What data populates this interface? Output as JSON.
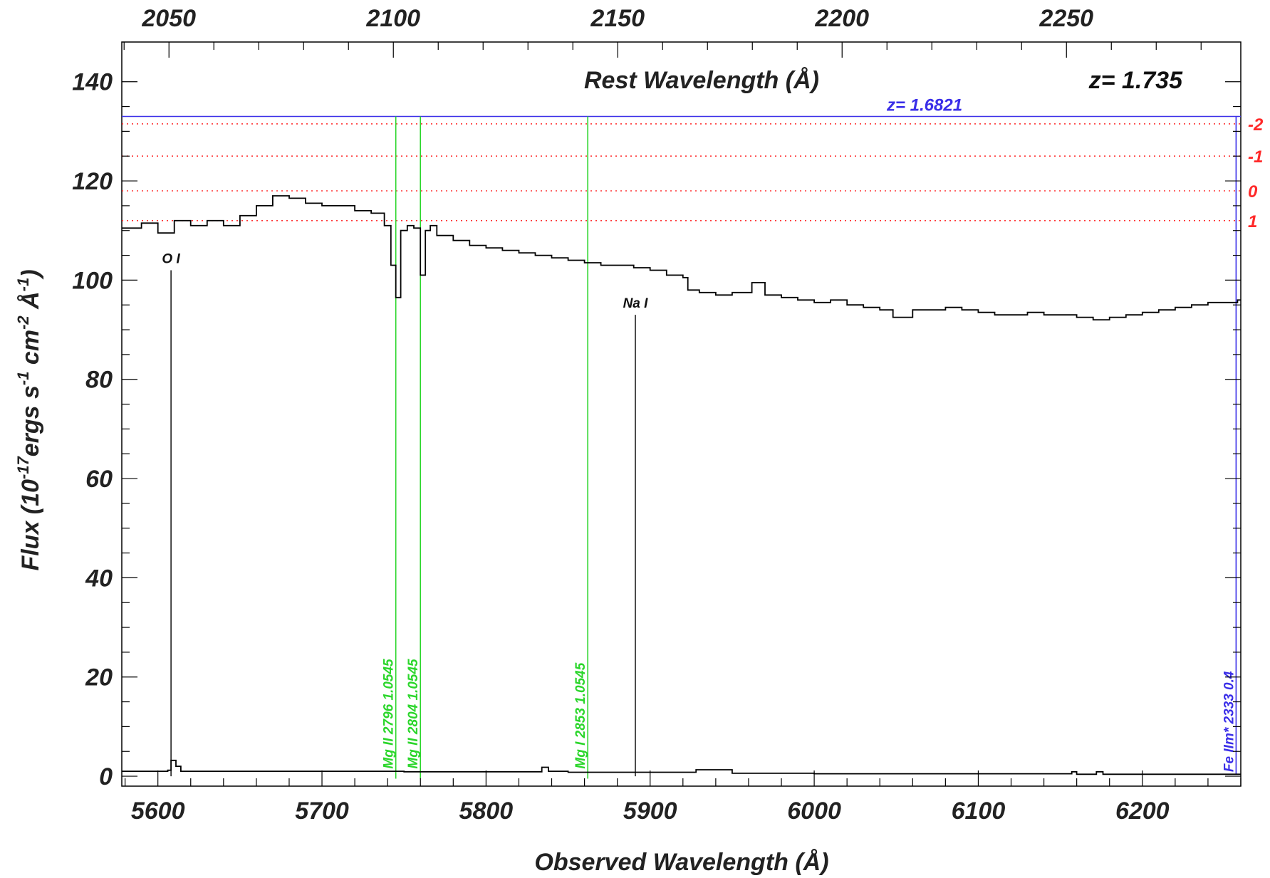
{
  "chart_data": {
    "type": "line",
    "title": "Rest Wavelength (Å)",
    "xlabel": "Observed Wavelength (Å)",
    "ylabel": "Flux (10-17ergs s-1 cm-2 Å-1)",
    "ylabel_parts": {
      "p1": "Flux (10",
      "sup1": "-17",
      "p2": "ergs s",
      "sup2": "-1",
      "p3": " cm",
      "sup3": "-2",
      "p4": " Å",
      "sup4": "-1",
      "p5": ")"
    },
    "redshift_label": "z= 1.735",
    "redshift": 1.735,
    "xlim": [
      5578,
      6260
    ],
    "ylim": [
      -2,
      148
    ],
    "x_ticks": [
      5600,
      5700,
      5800,
      5900,
      6000,
      6100,
      6200
    ],
    "x_tick_labels": [
      "5600",
      "5700",
      "5800",
      "5900",
      "6000",
      "6100",
      "6200"
    ],
    "y_ticks": [
      0,
      20,
      40,
      60,
      80,
      100,
      120,
      140
    ],
    "y_tick_labels": [
      "0",
      "20",
      "40",
      "60",
      "80",
      "100",
      "120",
      "140"
    ],
    "top_ticks": [
      2050,
      2100,
      2150,
      2200,
      2250
    ],
    "top_tick_labels": [
      "2050",
      "2100",
      "2150",
      "2200",
      "2250"
    ],
    "grid": false,
    "series": [
      {
        "color": "#000000",
        "style": "steps",
        "x": [
          5578,
          5590,
          5600,
          5610,
          5620,
          5630,
          5640,
          5650,
          5660,
          5670,
          5680,
          5690,
          5700,
          5710,
          5720,
          5730,
          5738,
          5742,
          5745,
          5748,
          5752,
          5756,
          5760,
          5763,
          5766,
          5770,
          5780,
          5790,
          5800,
          5810,
          5820,
          5830,
          5840,
          5850,
          5860,
          5870,
          5880,
          5890,
          5900,
          5910,
          5920,
          5923,
          5930,
          5940,
          5950,
          5962,
          5970,
          5980,
          5990,
          6000,
          6010,
          6020,
          6030,
          6040,
          6048,
          6060,
          6070,
          6080,
          6090,
          6100,
          6110,
          6120,
          6130,
          6140,
          6150,
          6160,
          6170,
          6180,
          6190,
          6200,
          6210,
          6220,
          6230,
          6240,
          6250,
          6258
        ],
        "y": [
          110.5,
          111.5,
          109.5,
          112.0,
          111.0,
          112.0,
          111.0,
          113.0,
          115.0,
          117.0,
          116.5,
          115.5,
          115.0,
          115.0,
          114.0,
          113.5,
          111.0,
          103.0,
          96.5,
          110.0,
          111.0,
          110.5,
          101.0,
          110.0,
          111.0,
          109.0,
          108.0,
          107.0,
          106.5,
          106.0,
          105.5,
          105.0,
          104.5,
          104.0,
          103.5,
          103.0,
          103.0,
          102.5,
          102.0,
          101.0,
          100.5,
          98.0,
          97.5,
          97.0,
          97.5,
          99.5,
          97.0,
          96.5,
          96.0,
          95.5,
          96.0,
          95.0,
          94.5,
          94.0,
          92.5,
          94.0,
          94.0,
          94.5,
          94.0,
          93.5,
          93.0,
          93.0,
          93.5,
          93.0,
          93.0,
          92.5,
          92.0,
          92.5,
          93.0,
          93.5,
          94.0,
          94.5,
          95.0,
          95.5,
          95.5,
          96.0
        ]
      },
      {
        "color": "#000000",
        "style": "steps",
        "x": [
          5578,
          5600,
          5606,
          5608,
          5611,
          5614,
          5650,
          5700,
          5750,
          5800,
          5830,
          5834,
          5838,
          5850,
          5900,
          5923,
          5928,
          5950,
          6000,
          6050,
          6100,
          6150,
          6157,
          6160,
          6172,
          6176,
          6200,
          6250,
          6258
        ],
        "y": [
          1.0,
          1.0,
          1.2,
          3.2,
          2.0,
          1.0,
          1.0,
          1.0,
          0.9,
          0.9,
          0.9,
          1.8,
          1.0,
          0.8,
          0.8,
          0.8,
          1.3,
          0.6,
          0.5,
          0.5,
          0.5,
          0.5,
          0.9,
          0.4,
          0.9,
          0.4,
          0.4,
          0.4,
          0.4
        ]
      }
    ],
    "emission_lines": [
      {
        "label": "O I",
        "x": 5608,
        "y_top": 102
      },
      {
        "label": "Na I",
        "x": 5891,
        "y_top": 93
      }
    ],
    "absorption_system": {
      "label": "z= 1.6821",
      "y": 133,
      "color": "#3a2ee8",
      "lines": [
        {
          "label": "Fe IIm* 2333 0.4",
          "x": 6258
        }
      ]
    },
    "intervening_lines": {
      "color": "#2bd62b",
      "lines": [
        {
          "label": "Mg II 2796 1.0545",
          "x": 5745
        },
        {
          "label": "Mg II 2804 1.0545",
          "x": 5760
        },
        {
          "label": "Mg I 2853 1.0545",
          "x": 5862
        }
      ]
    },
    "sigma_levels": [
      {
        "label": "-2",
        "y": 131.5
      },
      {
        "label": "-1",
        "y": 125
      },
      {
        "label": "0",
        "y": 118
      },
      {
        "label": "1",
        "y": 112
      }
    ]
  }
}
